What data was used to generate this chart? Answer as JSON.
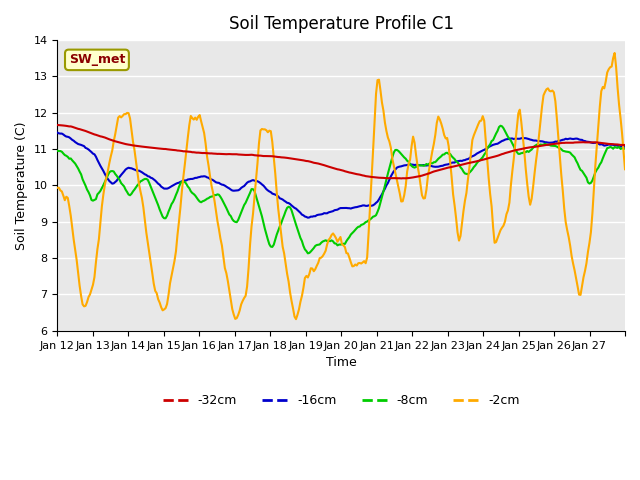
{
  "title": "Soil Temperature Profile C1",
  "xlabel": "Time",
  "ylabel": "Soil Temperature (C)",
  "ylim": [
    6.0,
    14.0
  ],
  "yticks": [
    6.0,
    7.0,
    8.0,
    9.0,
    10.0,
    11.0,
    12.0,
    13.0,
    14.0
  ],
  "legend_label": "SW_met",
  "legend_box_color": "#ffffcc",
  "legend_box_border": "#999900",
  "series_colors": {
    "-32cm": "#cc0000",
    "-16cm": "#0000cc",
    "-8cm": "#00cc00",
    "-2cm": "#ffaa00"
  },
  "background_color": "#e8e8e8",
  "x_tick_positions": [
    0,
    1,
    2,
    3,
    4,
    5,
    6,
    7,
    8,
    9,
    10,
    11,
    12,
    13,
    14,
    15,
    16
  ],
  "x_tick_labels": [
    "Jan 12",
    "Jan 13",
    "Jan 14",
    "Jan 15",
    "Jan 16",
    "Jan 17",
    "Jan 18",
    "Jan 19",
    "Jan 20",
    "Jan 21",
    "Jan 22",
    "Jan 23",
    "Jan 24",
    "Jan 25",
    "Jan 26",
    "Jan 27",
    ""
  ],
  "num_points": 384
}
